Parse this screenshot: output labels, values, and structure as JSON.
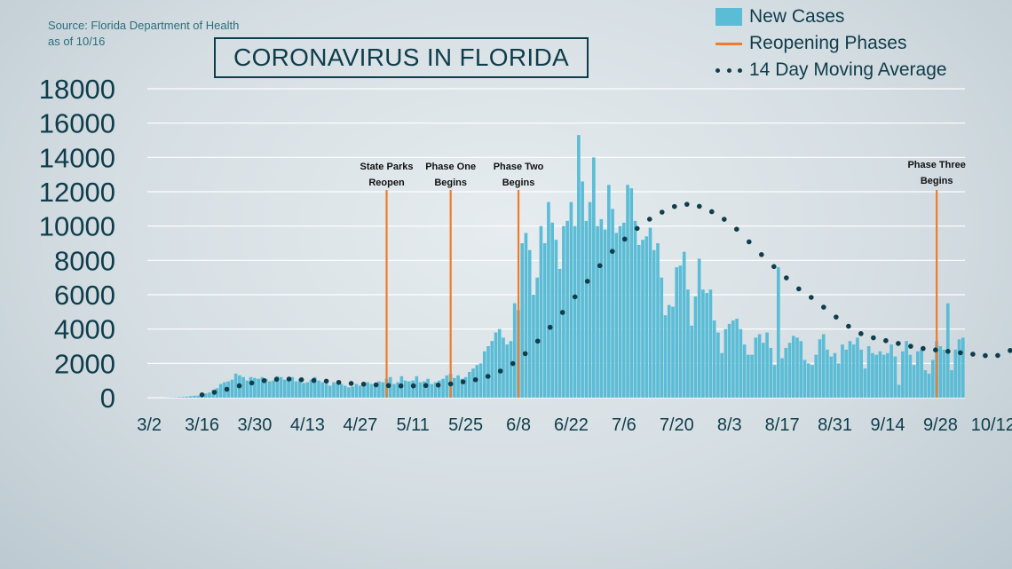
{
  "source_lines": [
    "Source: Florida Department of Health",
    "as of 10/16"
  ],
  "title": "CORONAVIRUS IN FLORIDA",
  "legend": [
    {
      "label": "New Cases",
      "icon": "bar-swatch",
      "color": "#5bbcd6"
    },
    {
      "label": "Reopening Phases",
      "icon": "line-swatch",
      "color": "#f07b2b"
    },
    {
      "label": "14 Day Moving Average",
      "icon": "dots-swatch",
      "color": "#0f3d4b"
    }
  ],
  "colors": {
    "bars": "#5bbcd6",
    "phases": "#f07b2b",
    "average": "#0f3d4b",
    "grid": "#ffffff",
    "text": "#0f3d4b"
  },
  "chart_data": {
    "type": "bar",
    "x_label_start": "3/2",
    "ylim": [
      0,
      18000
    ],
    "yticks": [
      0,
      2000,
      4000,
      6000,
      8000,
      10000,
      12000,
      14000,
      16000,
      18000
    ],
    "xtick_labels": [
      "3/2",
      "3/16",
      "3/30",
      "4/13",
      "4/27",
      "5/11",
      "5/25",
      "6/8",
      "6/22",
      "7/6",
      "7/20",
      "8/3",
      "8/17",
      "8/31",
      "9/14",
      "9/28",
      "10/12"
    ],
    "grid": true,
    "series": [
      {
        "name": "New Cases",
        "type": "bar",
        "values": [
          2,
          1,
          3,
          2,
          5,
          10,
          15,
          20,
          30,
          40,
          60,
          90,
          110,
          120,
          150,
          250,
          300,
          450,
          550,
          800,
          900,
          950,
          1050,
          1400,
          1300,
          1200,
          1000,
          1200,
          1150,
          1100,
          1200,
          1100,
          950,
          1000,
          1250,
          1200,
          1050,
          1150,
          1200,
          950,
          1100,
          850,
          900,
          1050,
          1200,
          1000,
          900,
          800,
          700,
          900,
          850,
          800,
          700,
          600,
          650,
          800,
          700,
          750,
          900,
          800,
          750,
          950,
          900,
          1100,
          1200,
          800,
          900,
          1250,
          1000,
          950,
          1000,
          1250,
          900,
          950,
          1100,
          800,
          900,
          1000,
          1100,
          1300,
          1400,
          1150,
          1300,
          1100,
          1200,
          1500,
          1700,
          1900,
          2000,
          2700,
          3000,
          3300,
          3800,
          4000,
          3500,
          3100,
          3300,
          5500,
          5100,
          9000,
          9600,
          8600,
          6000,
          7000,
          10000,
          9000,
          11400,
          10200,
          9200,
          7500,
          10000,
          10300,
          11400,
          10000,
          15300,
          12600,
          10300,
          11400,
          14000,
          10000,
          10400,
          9800,
          12400,
          11000,
          9600,
          10000,
          10200,
          12400,
          12200,
          10300,
          8900,
          9200,
          9400,
          9900,
          8600,
          9000,
          7000,
          4800,
          5400,
          5300,
          7600,
          7700,
          8500,
          6300,
          4200,
          5900,
          8100,
          6300,
          6100,
          6300,
          4500,
          3800,
          2600,
          4000,
          4300,
          4500,
          4600,
          4000,
          3100,
          2500,
          2500,
          3500,
          3700,
          3200,
          3800,
          2900,
          1900,
          7600,
          2300,
          2900,
          3200,
          3600,
          3500,
          3300,
          2200,
          2000,
          1900,
          2500,
          3400,
          3700,
          2800,
          2400,
          2600,
          2000,
          3100,
          2800,
          3300,
          3100,
          3500,
          2800,
          1700,
          3000,
          2600,
          2500,
          2700,
          2500,
          2600,
          3100,
          2400,
          750,
          2700,
          3300,
          2500,
          1900,
          2700,
          2800,
          1600,
          1400,
          2200,
          3300,
          3000,
          2800,
          5500,
          1600,
          2800,
          3400,
          3500
        ]
      },
      {
        "name": "14 Day Moving Average",
        "type": "line-dotted",
        "values": [
          null,
          null,
          null,
          null,
          null,
          null,
          null,
          null,
          null,
          null,
          null,
          null,
          null,
          null,
          null,
          null,
          null,
          null,
          null,
          null,
          null,
          null,
          null,
          null,
          null,
          null,
          null,
          null,
          null,
          null,
          null,
          null,
          null,
          null,
          null,
          null,
          null,
          null,
          null,
          null,
          null,
          null,
          null,
          null,
          null,
          null,
          null,
          null,
          null,
          null,
          null,
          null,
          null,
          null,
          null,
          null,
          null,
          null,
          null,
          null,
          null,
          null,
          null,
          null,
          null,
          null,
          null,
          null,
          null,
          null,
          null,
          null,
          null,
          null,
          null,
          null,
          null,
          null,
          null,
          null,
          null,
          null,
          null,
          null,
          null,
          null,
          null,
          null,
          null,
          null,
          null,
          null,
          null,
          null,
          null,
          null,
          null,
          null,
          null,
          null,
          null,
          null,
          null,
          null,
          null,
          null,
          null,
          null,
          null,
          null,
          null,
          null,
          null,
          null,
          null,
          null,
          null,
          null,
          null,
          null,
          null,
          null,
          null,
          null,
          null,
          null,
          null,
          null,
          null,
          null,
          null,
          null,
          null,
          null,
          null,
          null,
          null,
          null,
          null,
          null,
          null,
          null,
          null,
          null,
          null,
          null,
          null,
          null,
          null,
          null,
          null,
          null,
          null,
          null,
          null,
          null,
          null,
          null,
          null,
          null,
          null,
          null,
          null,
          null,
          null,
          null,
          null,
          null,
          null,
          null,
          null,
          null,
          null,
          null,
          null,
          null,
          null,
          null,
          null,
          null,
          null,
          null,
          null,
          null,
          null,
          null,
          null,
          null,
          null,
          null,
          null,
          null,
          null,
          null,
          null,
          null,
          null,
          null,
          null,
          null,
          null,
          null,
          null,
          null,
          null,
          null,
          null,
          null,
          null,
          null,
          null,
          null,
          null,
          null,
          null,
          null,
          null,
          null,
          null,
          null,
          null,
          null,
          null,
          null,
          null,
          null,
          null,
          null,
          null,
          null,
          null,
          null,
          null,
          null,
          null,
          null,
          null,
          null,
          null,
          null
        ],
        "points": [
          {
            "i": 0,
            "v": 0
          },
          {
            "i": 4,
            "v": 0
          },
          {
            "i": 8,
            "v": 10
          },
          {
            "i": 12,
            "v": 80
          },
          {
            "i": 16,
            "v": 250
          },
          {
            "i": 20,
            "v": 450
          },
          {
            "i": 24,
            "v": 700
          },
          {
            "i": 28,
            "v": 900
          },
          {
            "i": 32,
            "v": 1050
          },
          {
            "i": 36,
            "v": 1100
          },
          {
            "i": 40,
            "v": 1050
          },
          {
            "i": 44,
            "v": 1000
          },
          {
            "i": 48,
            "v": 950
          },
          {
            "i": 52,
            "v": 850
          },
          {
            "i": 56,
            "v": 800
          },
          {
            "i": 60,
            "v": 750
          },
          {
            "i": 64,
            "v": 700
          },
          {
            "i": 68,
            "v": 680
          },
          {
            "i": 72,
            "v": 700
          },
          {
            "i": 76,
            "v": 720
          },
          {
            "i": 80,
            "v": 800
          },
          {
            "i": 84,
            "v": 950
          },
          {
            "i": 88,
            "v": 1100
          },
          {
            "i": 92,
            "v": 1400
          },
          {
            "i": 96,
            "v": 1900
          },
          {
            "i": 100,
            "v": 2600
          },
          {
            "i": 104,
            "v": 3500
          },
          {
            "i": 108,
            "v": 4500
          },
          {
            "i": 112,
            "v": 5600
          },
          {
            "i": 116,
            "v": 6700
          },
          {
            "i": 120,
            "v": 7800
          },
          {
            "i": 124,
            "v": 8800
          },
          {
            "i": 128,
            "v": 9600
          },
          {
            "i": 132,
            "v": 10300
          },
          {
            "i": 136,
            "v": 10800
          },
          {
            "i": 140,
            "v": 11200
          },
          {
            "i": 144,
            "v": 11300
          },
          {
            "i": 148,
            "v": 11000
          },
          {
            "i": 152,
            "v": 10500
          },
          {
            "i": 156,
            "v": 9800
          },
          {
            "i": 160,
            "v": 8900
          },
          {
            "i": 164,
            "v": 8000
          },
          {
            "i": 168,
            "v": 7200
          },
          {
            "i": 172,
            "v": 6400
          },
          {
            "i": 176,
            "v": 5800
          },
          {
            "i": 180,
            "v": 5100
          },
          {
            "i": 184,
            "v": 4400
          },
          {
            "i": 188,
            "v": 3800
          },
          {
            "i": 192,
            "v": 3500
          },
          {
            "i": 196,
            "v": 3300
          },
          {
            "i": 200,
            "v": 3100
          },
          {
            "i": 204,
            "v": 2900
          },
          {
            "i": 208,
            "v": 2800
          },
          {
            "i": 212,
            "v": 2700
          },
          {
            "i": 216,
            "v": 2600
          },
          {
            "i": 220,
            "v": 2500
          },
          {
            "i": 224,
            "v": 2400
          },
          {
            "i": 226,
            "v": 2500
          },
          {
            "i": 228,
            "v": 2700
          },
          {
            "i": 229,
            "v": 2800
          }
        ]
      }
    ],
    "phases": [
      {
        "label_lines": [
          "State Parks",
          "Reopen"
        ],
        "x_index": 63,
        "y_top": 12000
      },
      {
        "label_lines": [
          "Phase One",
          "Begins"
        ],
        "x_index": 80,
        "y_top": 12000
      },
      {
        "label_lines": [
          "Phase Two",
          "Begins"
        ],
        "x_index": 98,
        "y_top": 12000
      },
      {
        "label_lines": [
          "Phase Three",
          "Begins"
        ],
        "x_index": 209,
        "y_top": 12000
      }
    ]
  }
}
